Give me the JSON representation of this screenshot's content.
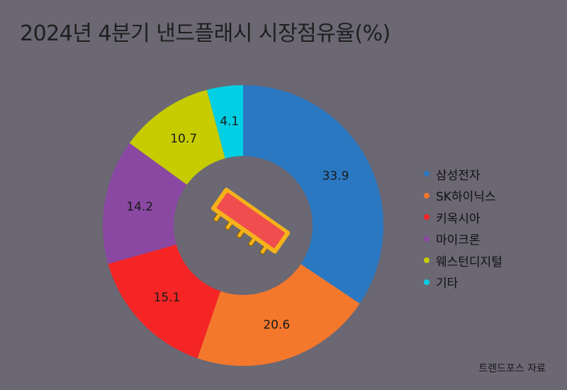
{
  "title": "2024년 4분기 낸드플래시 시장점유율(%)",
  "source": "트렌드포스 자료",
  "chart_data": {
    "type": "pie",
    "variant": "donut",
    "title": "2024년 4분기 낸드플래시 시장점유율(%)",
    "categories": [
      "삼성전자",
      "SK하이닉스",
      "키옥시아",
      "마이크론",
      "웨스턴디지털",
      "기타"
    ],
    "values": [
      33.9,
      20.6,
      15.1,
      14.2,
      10.7,
      4.1
    ],
    "value_labels": [
      "33.9",
      "20.6",
      "15.1",
      "14.2",
      "10.7",
      "4.1"
    ],
    "colors": [
      "#2b78c2",
      "#f4782c",
      "#f52525",
      "#8a48a2",
      "#c6cc00",
      "#00cfe4"
    ],
    "legend_position": "right",
    "center_icon": "memory-chip-icon"
  }
}
